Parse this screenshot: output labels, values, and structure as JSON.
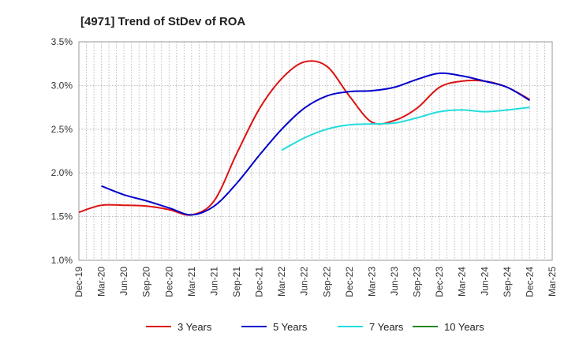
{
  "chart_data": {
    "type": "line",
    "title": "[4971]  Trend of StDev of ROA",
    "xlabel": "",
    "ylabel": "",
    "x_ticks": [
      "Dec-19",
      "Mar-20",
      "Jun-20",
      "Sep-20",
      "Dec-20",
      "Mar-21",
      "Jun-21",
      "Sep-21",
      "Dec-21",
      "Mar-22",
      "Jun-22",
      "Sep-22",
      "Dec-22",
      "Mar-23",
      "Jun-23",
      "Sep-23",
      "Dec-23",
      "Mar-24",
      "Jun-24",
      "Sep-24",
      "Dec-24",
      "Mar-25"
    ],
    "y_ticks": [
      "1.0%",
      "1.5%",
      "2.0%",
      "2.5%",
      "3.0%",
      "3.5%"
    ],
    "ylim": [
      1.0,
      3.5
    ],
    "grid": true,
    "legend_position": "bottom",
    "series": [
      {
        "name": "3 Years",
        "color": "#dd1111",
        "x": [
          "Dec-19",
          "Mar-20",
          "Jun-20",
          "Sep-20",
          "Dec-20",
          "Mar-21",
          "Jun-21",
          "Sep-21",
          "Dec-21",
          "Mar-22",
          "Jun-22",
          "Sep-22",
          "Dec-22",
          "Mar-23",
          "Jun-23",
          "Sep-23",
          "Dec-23",
          "Mar-24",
          "Jun-24",
          "Sep-24",
          "Dec-24"
        ],
        "values": [
          1.55,
          1.63,
          1.63,
          1.62,
          1.58,
          1.52,
          1.68,
          2.22,
          2.73,
          3.08,
          3.27,
          3.22,
          2.88,
          2.58,
          2.6,
          2.74,
          2.98,
          3.05,
          3.05,
          2.98,
          2.84
        ]
      },
      {
        "name": "5 Years",
        "color": "#0000cc",
        "x": [
          "Mar-20",
          "Jun-20",
          "Sep-20",
          "Dec-20",
          "Mar-21",
          "Jun-21",
          "Sep-21",
          "Dec-21",
          "Mar-22",
          "Jun-22",
          "Sep-22",
          "Dec-22",
          "Mar-23",
          "Jun-23",
          "Sep-23",
          "Dec-23",
          "Mar-24",
          "Jun-24",
          "Sep-24",
          "Dec-24"
        ],
        "values": [
          1.85,
          1.75,
          1.68,
          1.6,
          1.52,
          1.62,
          1.88,
          2.2,
          2.5,
          2.74,
          2.88,
          2.93,
          2.94,
          2.98,
          3.07,
          3.14,
          3.11,
          3.05,
          2.98,
          2.83
        ]
      },
      {
        "name": "7 Years",
        "color": "#22dddd",
        "x": [
          "Mar-22",
          "Jun-22",
          "Sep-22",
          "Dec-22",
          "Mar-23",
          "Jun-23",
          "Sep-23",
          "Dec-23",
          "Mar-24",
          "Jun-24",
          "Sep-24",
          "Dec-24"
        ],
        "values": [
          2.26,
          2.4,
          2.5,
          2.55,
          2.56,
          2.57,
          2.63,
          2.7,
          2.72,
          2.7,
          2.72,
          2.75
        ]
      },
      {
        "name": "10 Years",
        "color": "#228822",
        "x": [],
        "values": []
      }
    ]
  }
}
